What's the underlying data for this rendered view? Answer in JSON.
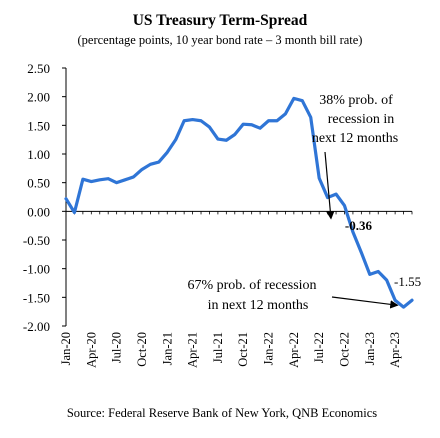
{
  "chart_data": {
    "type": "line",
    "title": "US Treasury Term-Spread",
    "subtitle": "(percentage points, 10 year bond rate – 3 month bill rate)",
    "xlabel": "",
    "ylabel": "",
    "ylim": [
      -2.0,
      2.5
    ],
    "yticks": [
      "2.50",
      "2.00",
      "1.50",
      "1.00",
      "0.50",
      "0.00",
      "-0.50",
      "-1.00",
      "-1.50",
      "-2.00"
    ],
    "xticks": [
      "Jan-20",
      "Apr-20",
      "Jul-20",
      "Oct-20",
      "Jan-21",
      "Apr-21",
      "Jul-21",
      "Oct-21",
      "Jan-22",
      "Apr-22",
      "Jul-22",
      "Oct-22",
      "Jan-23",
      "Apr-23"
    ],
    "grid": false,
    "legend": "none",
    "series": [
      {
        "color": "#2F75D6",
        "x": [
          "Jan-20",
          "Feb-20",
          "Mar-20",
          "Apr-20",
          "May-20",
          "Jun-20",
          "Jul-20",
          "Aug-20",
          "Sep-20",
          "Oct-20",
          "Nov-20",
          "Dec-20",
          "Jan-21",
          "Feb-21",
          "Mar-21",
          "Apr-21",
          "May-21",
          "Jun-21",
          "Jul-21",
          "Aug-21",
          "Sep-21",
          "Oct-21",
          "Nov-21",
          "Dec-21",
          "Jan-22",
          "Feb-22",
          "Mar-22",
          "Apr-22",
          "May-22",
          "Jun-22",
          "Jul-22",
          "Aug-22",
          "Sep-22",
          "Oct-22",
          "Nov-22",
          "Dec-22",
          "Jan-23",
          "Feb-23",
          "Mar-23",
          "Apr-23",
          "May-23",
          "Jun-23"
        ],
        "values": [
          0.22,
          -0.02,
          0.56,
          0.52,
          0.55,
          0.57,
          0.5,
          0.55,
          0.6,
          0.73,
          0.82,
          0.86,
          1.03,
          1.25,
          1.58,
          1.6,
          1.58,
          1.47,
          1.26,
          1.24,
          1.34,
          1.52,
          1.51,
          1.45,
          1.58,
          1.58,
          1.7,
          1.97,
          1.93,
          1.64,
          0.58,
          0.24,
          0.3,
          0.1,
          -0.36,
          -0.72,
          -1.1,
          -1.05,
          -1.2,
          -1.55,
          -1.67,
          -1.55
        ]
      }
    ],
    "annotations": [
      {
        "lines": [
          "38% prob. of",
          "recession in",
          "next  12 months"
        ],
        "value_label": "-0.36",
        "x": "Nov-22",
        "y": -0.36
      },
      {
        "lines": [
          "67% prob. of recession",
          "in next  12 months"
        ],
        "value_label": "-1.55",
        "x": "Jun-23",
        "y": -1.55
      }
    ],
    "source": "Source: Federal Reserve Bank of New York, QNB Economics"
  }
}
